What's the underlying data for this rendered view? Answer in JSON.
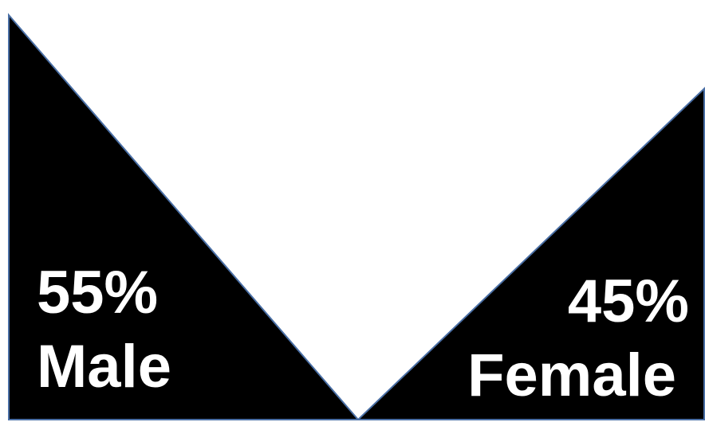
{
  "chart_data": {
    "type": "pie",
    "categories": [
      "Male",
      "Female"
    ],
    "values": [
      55,
      45
    ],
    "value_labels": [
      "55%",
      "45%"
    ],
    "title": "",
    "colors": {
      "fill": "#000000",
      "outline": "#4a6fa5",
      "label_text": "#ffffff",
      "background": "#ffffff"
    }
  }
}
